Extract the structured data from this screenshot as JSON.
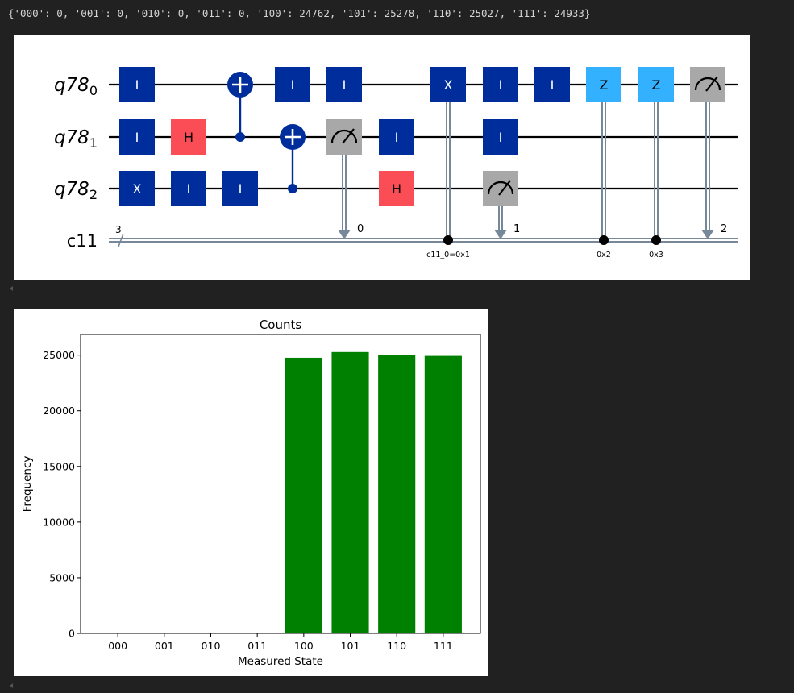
{
  "output_text": "{'000': 0, '001': 0, '010': 0, '011': 0, '100': 24762, '101': 25278, '110': 25027, '111': 24933}",
  "colors": {
    "page_bg": "#212121",
    "pauli_gate": "#002d9c",
    "hadamard_gate": "#fa4d56",
    "conditional_z_gate": "#33b1ff",
    "measure_gate": "#a8a8a8",
    "classical_wire": "#778899",
    "bar": "#008000"
  },
  "circuit": {
    "qubit_register": "q78",
    "qubit_labels": [
      {
        "name": "q78",
        "index": "0"
      },
      {
        "name": "q78",
        "index": "1"
      },
      {
        "name": "q78",
        "index": "2"
      }
    ],
    "classical_label": "c11",
    "classical_width": "3",
    "gates": [
      {
        "type": "gate",
        "label": "I",
        "qubit": 0,
        "col": 0,
        "icon": "i-gate"
      },
      {
        "type": "gate",
        "label": "I",
        "qubit": 1,
        "col": 0,
        "icon": "i-gate"
      },
      {
        "type": "gate",
        "label": "X",
        "qubit": 2,
        "col": 0,
        "icon": "x-gate"
      },
      {
        "type": "gate",
        "label": "H",
        "qubit": 1,
        "col": 1,
        "color": "hadamard",
        "icon": "h-gate"
      },
      {
        "type": "gate",
        "label": "I",
        "qubit": 2,
        "col": 1,
        "icon": "i-gate"
      },
      {
        "type": "cx",
        "control": 1,
        "target": 0,
        "col": 2,
        "icon": "cnot-target-icon"
      },
      {
        "type": "gate",
        "label": "I",
        "qubit": 2,
        "col": 2,
        "icon": "i-gate"
      },
      {
        "type": "cx",
        "control": 2,
        "target": 1,
        "col": 3,
        "icon": "cnot-target-icon"
      },
      {
        "type": "gate",
        "label": "I",
        "qubit": 0,
        "col": 3,
        "icon": "i-gate"
      },
      {
        "type": "gate",
        "label": "I",
        "qubit": 0,
        "col": 4,
        "icon": "i-gate"
      },
      {
        "type": "measure",
        "qubit": 1,
        "col": 4,
        "bit": "0",
        "icon": "meter-icon"
      },
      {
        "type": "gate",
        "label": "I",
        "qubit": 1,
        "col": 5,
        "icon": "i-gate"
      },
      {
        "type": "gate",
        "label": "H",
        "qubit": 2,
        "col": 5,
        "color": "hadamard",
        "icon": "h-gate"
      },
      {
        "type": "cgate",
        "label": "X",
        "qubit": 0,
        "col": 6,
        "cond": "c11_0=0x1",
        "icon": "x-gate"
      },
      {
        "type": "gate",
        "label": "I",
        "qubit": 0,
        "col": 7,
        "icon": "i-gate"
      },
      {
        "type": "gate",
        "label": "I",
        "qubit": 1,
        "col": 7,
        "icon": "i-gate"
      },
      {
        "type": "measure",
        "qubit": 2,
        "col": 7,
        "bit": "1",
        "icon": "meter-icon"
      },
      {
        "type": "gate",
        "label": "I",
        "qubit": 0,
        "col": 8,
        "icon": "i-gate"
      },
      {
        "type": "cgate",
        "label": "Z",
        "qubit": 0,
        "col": 9,
        "cond": "0x2",
        "color": "cz",
        "icon": "z-gate"
      },
      {
        "type": "cgate",
        "label": "Z",
        "qubit": 0,
        "col": 10,
        "cond": "0x3",
        "color": "cz",
        "icon": "z-gate"
      },
      {
        "type": "measure",
        "qubit": 0,
        "col": 11,
        "bit": "2",
        "icon": "meter-icon"
      }
    ]
  },
  "chart_data": {
    "type": "bar",
    "title": "Counts",
    "xlabel": "Measured State",
    "ylabel": "Frequency",
    "categories": [
      "000",
      "001",
      "010",
      "011",
      "100",
      "101",
      "110",
      "111"
    ],
    "values": [
      0,
      0,
      0,
      0,
      24762,
      25278,
      25027,
      24933
    ],
    "ylim": [
      0,
      26857
    ],
    "yticks": [
      0,
      5000,
      10000,
      15000,
      20000,
      25000
    ],
    "grid": false,
    "legend": "none",
    "color": "#008000"
  }
}
